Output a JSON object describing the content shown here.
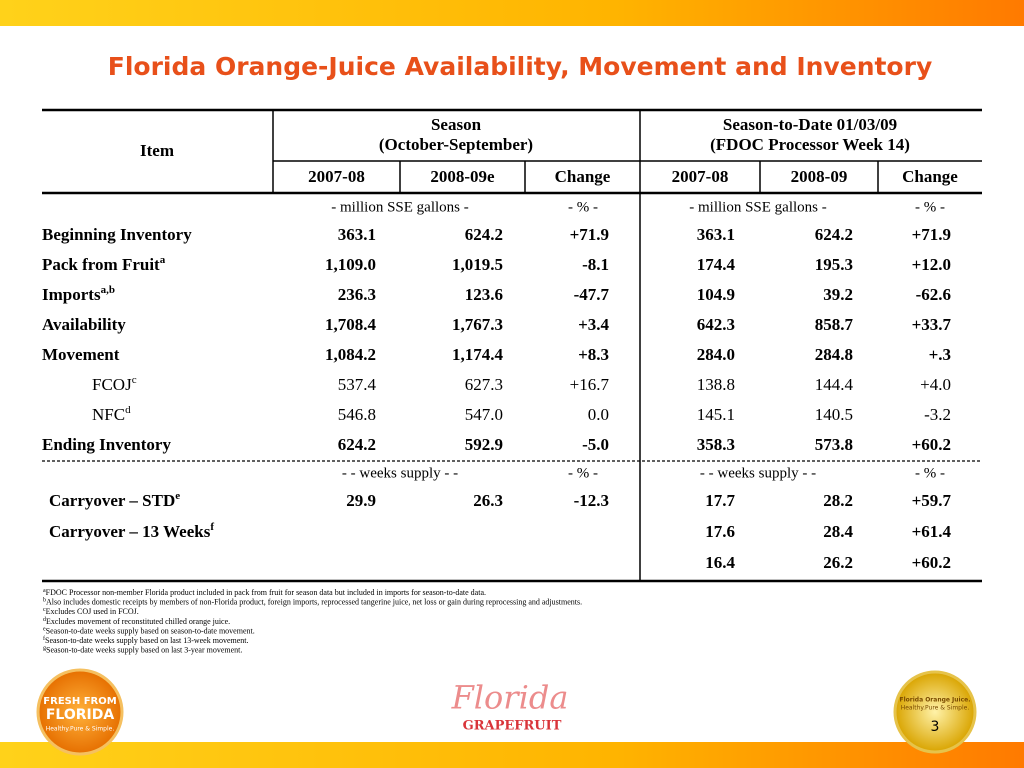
{
  "title": "Florida Orange-Juice Availability, Movement and Inventory",
  "table": {
    "header": {
      "item": "Item",
      "season": "Season",
      "season_sub": "(October-September)",
      "to_date": "Season-to-Date 01/03/09",
      "to_date_sub": "(FDOC Processor Week 14)",
      "columns": [
        "2007-08",
        "2008-09e",
        "Change",
        "2007-08",
        "2008-09",
        "Change"
      ]
    },
    "sections": [
      {
        "units": [
          "- million SSE gallons -",
          "- % -",
          "- million SSE gallons -",
          "- % -"
        ],
        "rows": [
          {
            "label": "Beginning Inventory",
            "cells": [
              "363.1",
              "624.2",
              "+71.9",
              "363.1",
              "624.2",
              "+71.9"
            ]
          },
          {
            "label": "Pack from Fruit",
            "note": "a",
            "cells": [
              "1,109.0",
              "1,019.5",
              "-8.1",
              "174.4",
              "195.3",
              "+12.0"
            ]
          },
          {
            "label": "Imports",
            "note": "a,b",
            "cells": [
              "236.3",
              "123.6",
              "-47.7",
              "104.9",
              "39.2",
              "-62.6"
            ]
          },
          {
            "label": "Availability",
            "cells": [
              "1,708.4",
              "1,767.3",
              "+3.4",
              "642.3",
              "858.7",
              "+33.7"
            ]
          },
          {
            "label": "Movement",
            "cells": [
              "1,084.2",
              "1,174.4",
              "+8.3",
              "284.0",
              "284.8",
              "+.3"
            ]
          },
          {
            "label": "FCOJ",
            "note": "c",
            "sub": true,
            "cells": [
              "537.4",
              "627.3",
              "+16.7",
              "138.8",
              "144.4",
              "+4.0"
            ]
          },
          {
            "label": "NFC",
            "note": "d",
            "sub": true,
            "cells": [
              "546.8",
              "547.0",
              "0.0",
              "145.1",
              "140.5",
              "-3.2"
            ]
          },
          {
            "label": "Ending Inventory",
            "cells": [
              "624.2",
              "592.9",
              "-5.0",
              "358.3",
              "573.8",
              "+60.2"
            ]
          }
        ]
      },
      {
        "units": [
          "- - weeks supply - -",
          "- % -",
          "- - weeks supply - -",
          "- % -"
        ],
        "rows": [
          {
            "label": "Carryover – STD",
            "note": "e",
            "cells": [
              "29.9",
              "26.3",
              "-12.3",
              "17.7",
              "28.2",
              "+59.7"
            ]
          },
          {
            "label": "Carryover – 13 Weeks",
            "note": "f",
            "cells": [
              null,
              null,
              null,
              "17.6",
              "28.4",
              "+61.4"
            ]
          },
          {
            "cells": [
              null,
              null,
              null,
              "16.4",
              "26.2",
              "+60.2"
            ]
          }
        ]
      }
    ]
  },
  "footnotes": [
    {
      "mark": "a",
      "text": "FDOC Processor non-member Florida product included in pack from fruit for season data but included in imports for season-to-date data."
    },
    {
      "mark": "b",
      "text": "Also includes domestic receipts by members of non-Florida product, foreign imports, reprocessed tangerine juice, net loss or gain during reprocessing and adjustments."
    },
    {
      "mark": "c",
      "text": "Excludes COJ used in FCOJ."
    },
    {
      "mark": "d",
      "text": "Excludes movement of reconstituted chilled orange juice."
    },
    {
      "mark": "e",
      "text": "Season-to-date weeks supply based on season-to-date movement."
    },
    {
      "mark": "f",
      "text": "Season-to-date weeks supply based on last 13-week movement."
    },
    {
      "mark": "g",
      "text": "Season-to-date weeks supply based on last 3-year movement."
    }
  ],
  "footer": {
    "left_logo": [
      "FRESH FROM",
      "FLORIDA",
      "Healthy.Pure & Simple."
    ],
    "center_logo": [
      "Florida",
      "GRAPEFRUIT"
    ],
    "right_logo": [
      "Florida Orange Juice.",
      "Healthy.Pure & Simple."
    ],
    "page": "3"
  }
}
